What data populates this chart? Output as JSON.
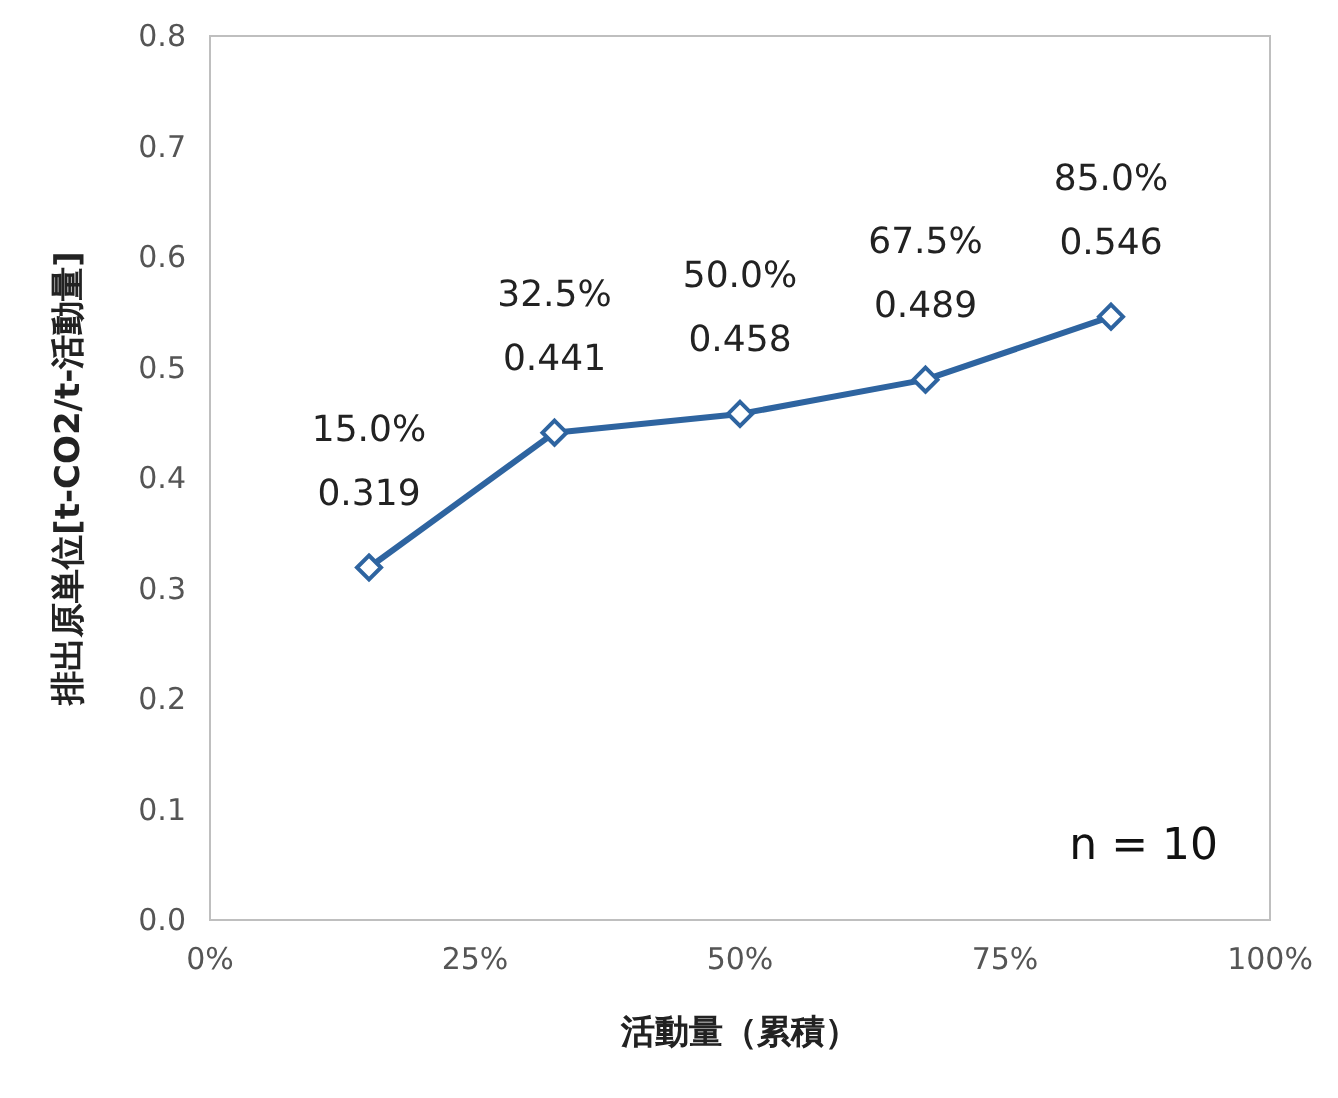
{
  "chart_data": {
    "type": "line",
    "xlabel": "活動量（累積）",
    "ylabel": "排出原単位[t-CO2/t-活動量]",
    "x": [
      15,
      32.5,
      50,
      67.5,
      85
    ],
    "series": [
      {
        "color": "#2e64a0",
        "values": [
          0.319,
          0.441,
          0.458,
          0.489,
          0.546
        ],
        "value_labels": [
          "15.0%\n0.319",
          "32.5%\n0.441",
          "50.0%\n0.458",
          "67.5%\n0.489",
          "85.0%\n0.546"
        ]
      }
    ],
    "xlim": [
      0,
      100
    ],
    "xticks": [
      {
        "value": 0,
        "label": "0%"
      },
      {
        "value": 25,
        "label": "25%"
      },
      {
        "value": 50,
        "label": "50%"
      },
      {
        "value": 75,
        "label": "75%"
      },
      {
        "value": 100,
        "label": "100%"
      }
    ],
    "ylim": [
      0,
      0.8
    ],
    "yticks": [
      {
        "value": 0,
        "label": "0.0"
      },
      {
        "value": 0.1,
        "label": "0.1"
      },
      {
        "value": 0.2,
        "label": "0.2"
      },
      {
        "value": 0.3,
        "label": "0.3"
      },
      {
        "value": 0.4,
        "label": "0.4"
      },
      {
        "value": 0.5,
        "label": "0.5"
      },
      {
        "value": 0.6,
        "label": "0.6"
      },
      {
        "value": 0.7,
        "label": "0.7"
      },
      {
        "value": 0.8,
        "label": "0.8"
      }
    ],
    "annotations": [
      "n = 10"
    ],
    "grid": false,
    "marker": "diamond",
    "line_style": "solid"
  }
}
